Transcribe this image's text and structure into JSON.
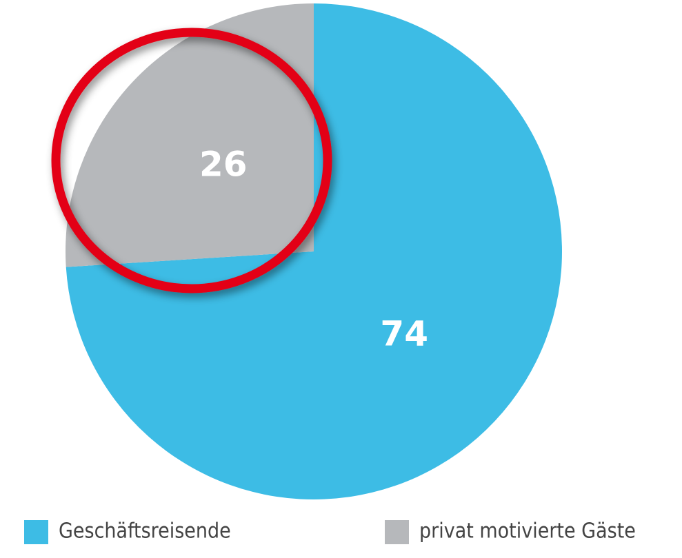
{
  "chart_data": {
    "type": "pie",
    "categories": [
      "Geschäftsreisende",
      "privat motivierte Gäste"
    ],
    "values": [
      74,
      26
    ],
    "colors": [
      "#3dbce5",
      "#b6b8bb"
    ]
  }
}
